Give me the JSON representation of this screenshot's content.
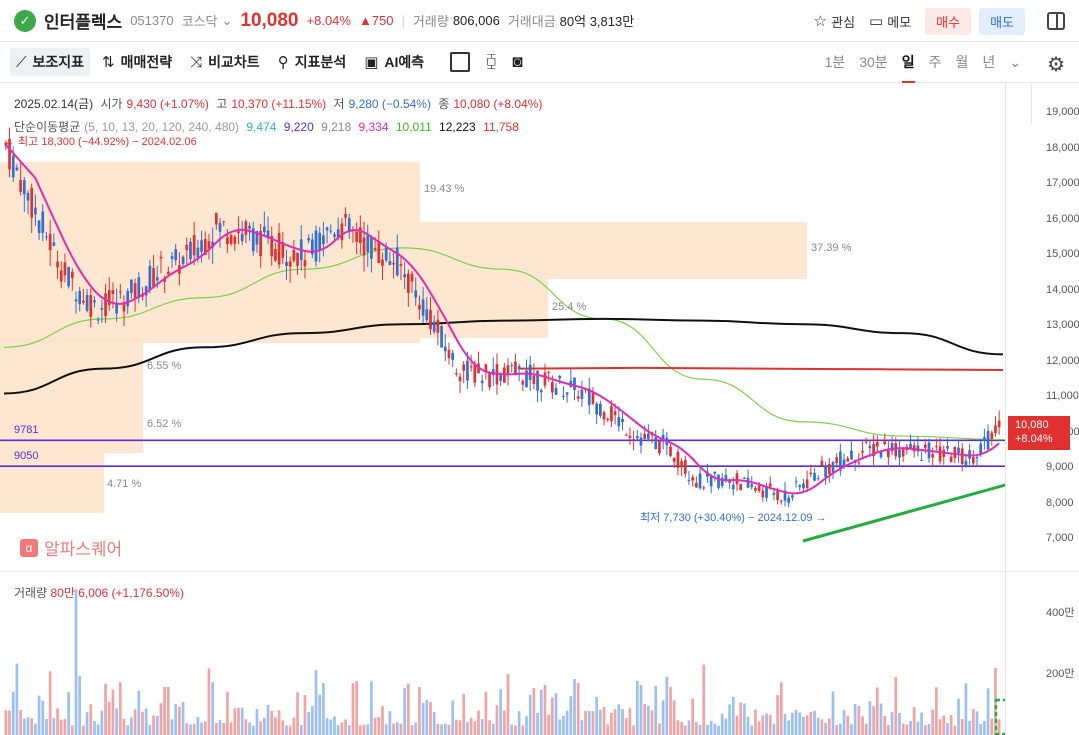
{
  "header": {
    "name": "인터플렉스",
    "code": "051370",
    "market": "코스닥",
    "price": "10,080",
    "change_pct": "+8.04%",
    "change_amt": "▲750",
    "volume_label": "거래량",
    "volume": "806,006",
    "value_label": "거래대금",
    "value": "80억 3,813만",
    "watch_label": "관심",
    "memo_label": "메모",
    "buy_label": "매수",
    "sell_label": "매도"
  },
  "toolbar": {
    "indicator": "보조지표",
    "strategy": "매매전략",
    "compare": "비교차트",
    "analysis": "지표분석",
    "ai": "AI예측",
    "periods": [
      "1분",
      "30분",
      "일",
      "주",
      "월",
      "년"
    ]
  },
  "legend": {
    "date": "2025.02.14(금)",
    "open_label": "시가",
    "open": "9,430 (+1.07%)",
    "high_label": "고",
    "high": "10,370 (+11.15%)",
    "low_label": "저",
    "low": "9,280 (−0.54%)",
    "close_label": "종",
    "close": "10,080 (+8.04%)",
    "ma_label": "단순이동평균",
    "ma_periods": "(5, 10, 13, 20, 120, 240, 480)",
    "ma_values": [
      "9,474",
      "9,220",
      "9,218",
      "9,334",
      "10,011",
      "12,223",
      "11,758"
    ],
    "high_note": "← 최고 18,300 (−44.92%) − 2024.02.06"
  },
  "colors": {
    "up": "#e03131",
    "down": "#2f6fd6",
    "ma5": "#2bb0c9",
    "ma10": "#5b2bd6",
    "ma13": "#888888",
    "ma20": "#e02bb6",
    "ma120": "#7ad14a",
    "ma240": "#111111",
    "ma480": "#e03131"
  },
  "chart_data": {
    "type": "candlestick",
    "ylim": [
      6500,
      19500
    ],
    "y_ticks": [
      "19,000",
      "18,000",
      "17,000",
      "16,000",
      "15,000",
      "14,000",
      "13,000",
      "12,000",
      "11,000",
      "10,000",
      "9,000",
      "8,000",
      "7,000"
    ],
    "current_price": "10,080",
    "current_change": "+8.04%",
    "levels": [
      {
        "label": "9781",
        "value": 9781
      },
      {
        "label": "9050",
        "value": 9050
      }
    ],
    "fib_labels": [
      "19.43 %",
      "37.39 %",
      "25.4 %",
      "6.55 %",
      "6.52 %",
      "4.71 %"
    ],
    "low_note": "최저 7,730 (+30.40%) − 2024.12.09 →",
    "ma240": [
      11100,
      11800,
      12400,
      12800,
      13050,
      13150,
      13200,
      13150,
      13050,
      12800,
      12200
    ],
    "ma480": [
      11800,
      11820,
      11800,
      11780,
      11760
    ],
    "ma120": [
      12400,
      13200,
      13800,
      14600,
      15200,
      14600,
      13200,
      11500,
      10300,
      9900,
      9800
    ],
    "closes": [
      18100,
      16200,
      14400,
      13500,
      13800,
      14500,
      14900,
      15800,
      15600,
      15200,
      15000,
      15900,
      15300,
      14800,
      13400,
      11800,
      11600,
      11700,
      11400,
      11200,
      10600,
      9900,
      9600,
      8600,
      8700,
      8400,
      8200,
      8900,
      9300,
      9600,
      9500,
      9400,
      9300,
      10080
    ]
  },
  "watermark": {
    "icon": "α",
    "text": "알파스퀘어"
  },
  "volume": {
    "label": "거래량",
    "value": "80만 6,006 (+1,176.50%)",
    "ticks": [
      "400만",
      "200만"
    ],
    "ylim": [
      0,
      5000000
    ]
  }
}
